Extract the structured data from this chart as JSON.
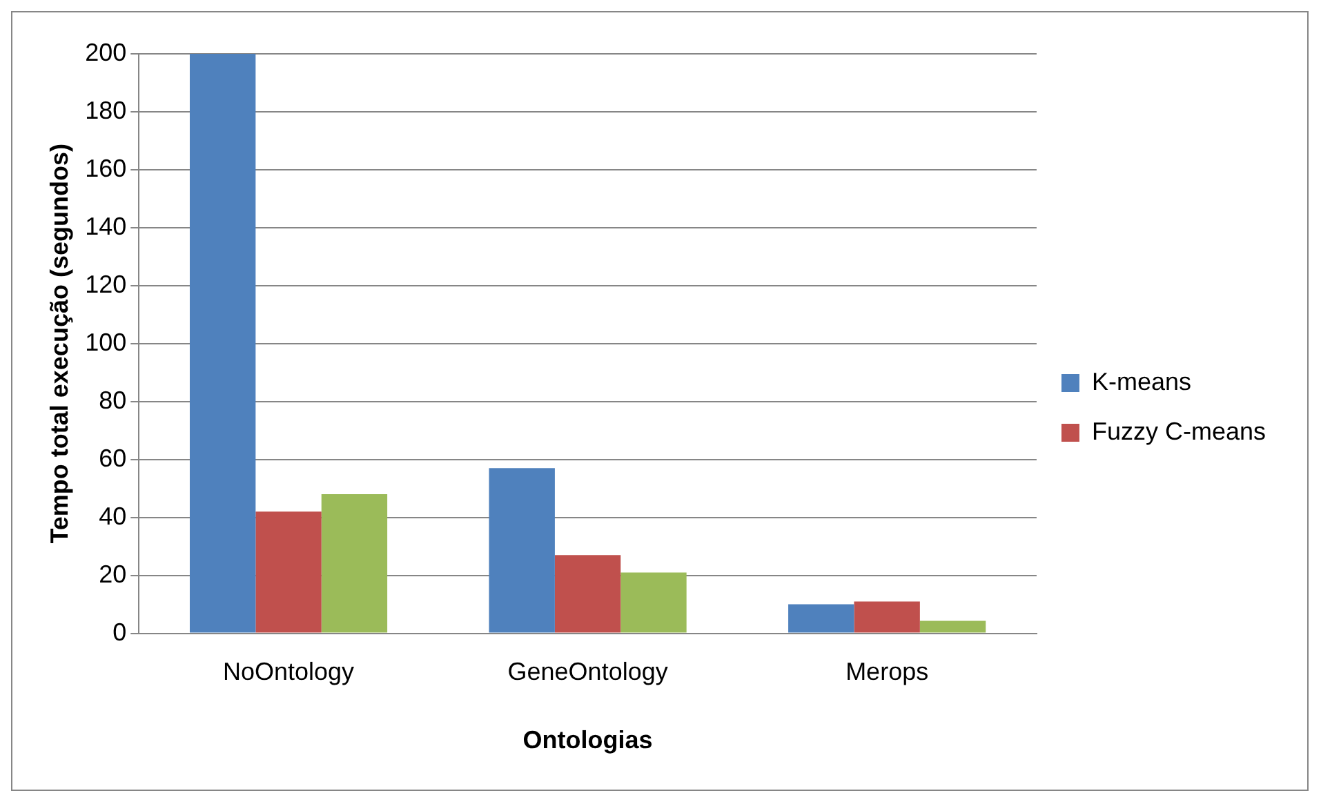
{
  "chart_data": {
    "type": "bar",
    "xlabel": "Ontologias",
    "ylabel": "Tempo total execução (segundos)",
    "categories": [
      "NoOntology",
      "GeneOntology",
      "Merops"
    ],
    "series": [
      {
        "name": "K-means",
        "color": "#4f81bd",
        "values": [
          200,
          57,
          10
        ]
      },
      {
        "name": "Fuzzy C-means",
        "color": "#c0504d",
        "values": [
          42,
          27,
          11
        ]
      },
      {
        "color": "#9bbb59",
        "values": [
          48,
          21,
          4.3
        ]
      }
    ],
    "ylim": [
      0,
      200
    ],
    "yticks": [
      0,
      20,
      40,
      60,
      80,
      100,
      120,
      140,
      160,
      180,
      200
    ],
    "grid": "y",
    "legend": "right"
  }
}
